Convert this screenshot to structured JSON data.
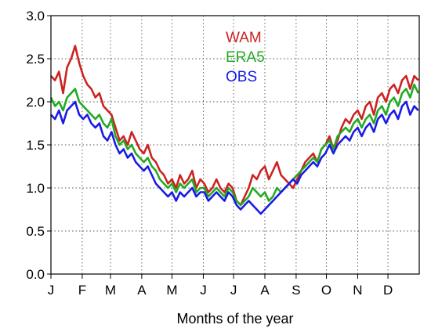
{
  "chart_data": {
    "type": "line",
    "title": "",
    "xlabel": "Months of the year",
    "ylabel": "",
    "ylim": [
      0.0,
      3.0
    ],
    "xlim": [
      0,
      365
    ],
    "grid": true,
    "grid_style": "dotted",
    "legend_position": "top-center",
    "y_ticks": [
      {
        "value": 0.0,
        "label": "0.0"
      },
      {
        "value": 0.5,
        "label": "0.5"
      },
      {
        "value": 1.0,
        "label": "1.0"
      },
      {
        "value": 1.5,
        "label": "1.5"
      },
      {
        "value": 2.0,
        "label": "2.0"
      },
      {
        "value": 2.5,
        "label": "2.5"
      },
      {
        "value": 3.0,
        "label": "3.0"
      }
    ],
    "x_ticks": [
      {
        "value": 0,
        "label": "J"
      },
      {
        "value": 31,
        "label": "F"
      },
      {
        "value": 59,
        "label": "M"
      },
      {
        "value": 90,
        "label": "A"
      },
      {
        "value": 120,
        "label": "M"
      },
      {
        "value": 151,
        "label": "J"
      },
      {
        "value": 181,
        "label": "J"
      },
      {
        "value": 212,
        "label": "A"
      },
      {
        "value": 243,
        "label": "S"
      },
      {
        "value": 273,
        "label": "O"
      },
      {
        "value": 304,
        "label": "N"
      },
      {
        "value": 334,
        "label": "D"
      }
    ],
    "series": [
      {
        "name": "WAM",
        "color": "#cc2222",
        "x": [
          0,
          4,
          8,
          12,
          16,
          20,
          24,
          28,
          32,
          36,
          40,
          44,
          48,
          52,
          56,
          60,
          64,
          68,
          72,
          76,
          80,
          84,
          88,
          92,
          96,
          100,
          104,
          108,
          112,
          116,
          120,
          124,
          128,
          132,
          136,
          140,
          144,
          148,
          152,
          156,
          160,
          164,
          168,
          172,
          176,
          180,
          184,
          188,
          192,
          196,
          200,
          204,
          208,
          212,
          216,
          220,
          224,
          228,
          232,
          236,
          240,
          244,
          248,
          252,
          256,
          260,
          264,
          268,
          272,
          276,
          280,
          284,
          288,
          292,
          296,
          300,
          304,
          308,
          312,
          316,
          320,
          324,
          328,
          332,
          336,
          340,
          344,
          348,
          352,
          356,
          360,
          364
        ],
        "y": [
          2.3,
          2.25,
          2.35,
          2.1,
          2.4,
          2.5,
          2.65,
          2.45,
          2.3,
          2.2,
          2.15,
          2.05,
          2.1,
          1.95,
          1.9,
          1.85,
          1.7,
          1.55,
          1.6,
          1.5,
          1.65,
          1.55,
          1.45,
          1.4,
          1.5,
          1.35,
          1.3,
          1.2,
          1.15,
          1.05,
          1.1,
          1.0,
          1.15,
          1.05,
          1.1,
          1.2,
          1.0,
          1.1,
          1.05,
          0.95,
          1.0,
          1.1,
          1.0,
          0.95,
          1.05,
          1.0,
          0.85,
          0.8,
          0.9,
          1.0,
          1.15,
          1.1,
          1.2,
          1.25,
          1.1,
          1.2,
          1.3,
          1.15,
          1.1,
          1.05,
          1.0,
          1.1,
          1.2,
          1.3,
          1.35,
          1.4,
          1.3,
          1.45,
          1.5,
          1.6,
          1.45,
          1.55,
          1.7,
          1.8,
          1.75,
          1.85,
          1.9,
          1.8,
          1.95,
          2.0,
          1.85,
          2.05,
          2.1,
          2.0,
          2.15,
          2.2,
          2.1,
          2.25,
          2.3,
          2.15,
          2.3,
          2.25
        ]
      },
      {
        "name": "ERA5",
        "color": "#22aa22",
        "x": [
          0,
          4,
          8,
          12,
          16,
          20,
          24,
          28,
          32,
          36,
          40,
          44,
          48,
          52,
          56,
          60,
          64,
          68,
          72,
          76,
          80,
          84,
          88,
          92,
          96,
          100,
          104,
          108,
          112,
          116,
          120,
          124,
          128,
          132,
          136,
          140,
          144,
          148,
          152,
          156,
          160,
          164,
          168,
          172,
          176,
          180,
          184,
          188,
          192,
          196,
          200,
          204,
          208,
          212,
          216,
          220,
          224,
          228,
          232,
          236,
          240,
          244,
          248,
          252,
          256,
          260,
          264,
          268,
          272,
          276,
          280,
          284,
          288,
          292,
          296,
          300,
          304,
          308,
          312,
          316,
          320,
          324,
          328,
          332,
          336,
          340,
          344,
          348,
          352,
          356,
          360,
          364
        ],
        "y": [
          2.05,
          1.95,
          2.0,
          1.9,
          2.05,
          2.1,
          2.15,
          2.0,
          1.95,
          1.9,
          1.85,
          1.8,
          1.85,
          1.75,
          1.7,
          1.8,
          1.6,
          1.5,
          1.55,
          1.45,
          1.5,
          1.4,
          1.35,
          1.3,
          1.35,
          1.25,
          1.2,
          1.1,
          1.05,
          1.0,
          1.05,
          0.95,
          1.05,
          1.0,
          1.05,
          1.1,
          0.95,
          1.0,
          1.0,
          0.9,
          0.95,
          1.0,
          0.95,
          0.9,
          1.0,
          0.95,
          0.85,
          0.8,
          0.85,
          0.9,
          1.0,
          0.95,
          0.9,
          0.95,
          0.85,
          0.9,
          1.0,
          0.95,
          1.0,
          1.05,
          1.1,
          1.15,
          1.2,
          1.25,
          1.3,
          1.35,
          1.3,
          1.45,
          1.5,
          1.55,
          1.45,
          1.6,
          1.65,
          1.7,
          1.65,
          1.75,
          1.8,
          1.7,
          1.8,
          1.85,
          1.75,
          1.9,
          1.95,
          1.85,
          2.0,
          2.05,
          1.95,
          2.1,
          2.15,
          2.05,
          2.2,
          2.1
        ]
      },
      {
        "name": "OBS",
        "color": "#1a1ae6",
        "x": [
          0,
          4,
          8,
          12,
          16,
          20,
          24,
          28,
          32,
          36,
          40,
          44,
          48,
          52,
          56,
          60,
          64,
          68,
          72,
          76,
          80,
          84,
          88,
          92,
          96,
          100,
          104,
          108,
          112,
          116,
          120,
          124,
          128,
          132,
          136,
          140,
          144,
          148,
          152,
          156,
          160,
          164,
          168,
          172,
          176,
          180,
          184,
          188,
          192,
          196,
          200,
          204,
          208,
          212,
          216,
          220,
          224,
          228,
          232,
          236,
          240,
          244,
          248,
          252,
          256,
          260,
          264,
          268,
          272,
          276,
          280,
          284,
          288,
          292,
          296,
          300,
          304,
          308,
          312,
          316,
          320,
          324,
          328,
          332,
          336,
          340,
          344,
          348,
          352,
          356,
          360,
          364
        ],
        "y": [
          1.85,
          1.8,
          1.9,
          1.75,
          1.9,
          1.95,
          2.0,
          1.85,
          1.8,
          1.85,
          1.75,
          1.7,
          1.75,
          1.6,
          1.55,
          1.65,
          1.5,
          1.4,
          1.45,
          1.35,
          1.4,
          1.3,
          1.25,
          1.2,
          1.25,
          1.15,
          1.05,
          1.0,
          0.95,
          0.9,
          0.95,
          0.85,
          0.95,
          0.9,
          0.95,
          1.0,
          0.9,
          0.95,
          0.95,
          0.85,
          0.9,
          0.95,
          0.9,
          0.85,
          0.95,
          0.9,
          0.8,
          0.75,
          0.8,
          0.85,
          0.8,
          0.75,
          0.7,
          0.75,
          0.8,
          0.85,
          0.9,
          0.95,
          1.0,
          1.05,
          1.1,
          1.05,
          1.15,
          1.2,
          1.25,
          1.3,
          1.25,
          1.35,
          1.4,
          1.5,
          1.4,
          1.5,
          1.55,
          1.6,
          1.55,
          1.65,
          1.7,
          1.6,
          1.7,
          1.75,
          1.65,
          1.8,
          1.85,
          1.75,
          1.85,
          1.9,
          1.8,
          1.95,
          2.0,
          1.85,
          1.95,
          1.9
        ]
      }
    ]
  }
}
